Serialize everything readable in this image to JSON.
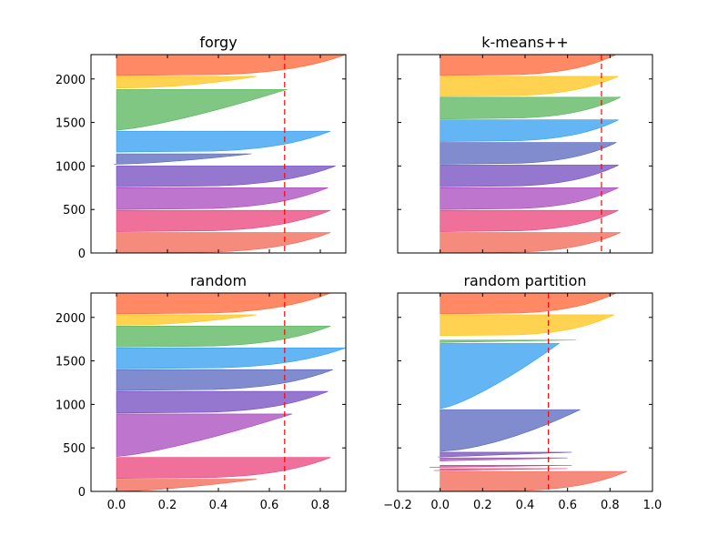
{
  "chart_data": [
    {
      "type": "area",
      "subtype": "silhouette",
      "title": "forgy",
      "xlim": [
        -0.1,
        0.9
      ],
      "ylim": [
        0,
        2280
      ],
      "xticks": [],
      "yticks": [
        0,
        500,
        1000,
        1500,
        2000
      ],
      "average_silhouette": 0.66,
      "clusters": [
        {
          "y0": 0,
          "y1": 235,
          "max": 0.84,
          "min": 0.0,
          "shape": 4,
          "color": "#f05a46"
        },
        {
          "y0": 245,
          "y1": 490,
          "max": 0.84,
          "min": 0.0,
          "shape": 4,
          "color": "#e8336f"
        },
        {
          "y0": 500,
          "y1": 750,
          "max": 0.83,
          "min": 0.0,
          "shape": 4,
          "color": "#a33bb8"
        },
        {
          "y0": 760,
          "y1": 1000,
          "max": 0.86,
          "min": 0.0,
          "shape": 4,
          "color": "#6a3dbb"
        },
        {
          "y0": 1020,
          "y1": 1140,
          "max": 0.53,
          "min": -0.01,
          "shape": 1.5,
          "color": "#4a5bb8"
        },
        {
          "y0": 1160,
          "y1": 1400,
          "max": 0.84,
          "min": 0.0,
          "shape": 4,
          "color": "#2196f0"
        },
        {
          "y0": 1410,
          "y1": 1880,
          "max": 0.67,
          "min": 0.0,
          "shape": 1.3,
          "color": "#4caf50"
        },
        {
          "y0": 1895,
          "y1": 2030,
          "max": 0.55,
          "min": 0.0,
          "shape": 2,
          "color": "#ffc107"
        },
        {
          "y0": 2040,
          "y1": 2280,
          "max": 0.9,
          "min": 0.0,
          "shape": 4,
          "color": "#ff5722"
        }
      ]
    },
    {
      "type": "area",
      "subtype": "silhouette",
      "title": "k-means++",
      "xlim": [
        -0.2,
        1.0
      ],
      "ylim": [
        0,
        2280
      ],
      "xticks": [],
      "yticks": [],
      "average_silhouette": 0.76,
      "clusters": [
        {
          "y0": 0,
          "y1": 235,
          "max": 0.85,
          "min": 0.0,
          "shape": 4,
          "color": "#f05a46"
        },
        {
          "y0": 245,
          "y1": 490,
          "max": 0.84,
          "min": 0.0,
          "shape": 4,
          "color": "#e8336f"
        },
        {
          "y0": 500,
          "y1": 750,
          "max": 0.84,
          "min": 0.0,
          "shape": 4,
          "color": "#a33bb8"
        },
        {
          "y0": 760,
          "y1": 1010,
          "max": 0.84,
          "min": 0.0,
          "shape": 4,
          "color": "#6a3dbb"
        },
        {
          "y0": 1020,
          "y1": 1270,
          "max": 0.83,
          "min": 0.0,
          "shape": 4,
          "color": "#4a5bb8"
        },
        {
          "y0": 1280,
          "y1": 1530,
          "max": 0.84,
          "min": 0.0,
          "shape": 4,
          "color": "#2196f0"
        },
        {
          "y0": 1540,
          "y1": 1790,
          "max": 0.85,
          "min": 0.0,
          "shape": 4,
          "color": "#4caf50"
        },
        {
          "y0": 1800,
          "y1": 2030,
          "max": 0.84,
          "min": 0.0,
          "shape": 4,
          "color": "#ffc107"
        },
        {
          "y0": 2040,
          "y1": 2280,
          "max": 0.83,
          "min": 0.0,
          "shape": 4,
          "color": "#ff5722"
        }
      ]
    },
    {
      "type": "area",
      "subtype": "silhouette",
      "title": "random",
      "xlim": [
        -0.1,
        0.9
      ],
      "ylim": [
        0,
        2280
      ],
      "xticks": [
        0.0,
        0.2,
        0.4,
        0.6,
        0.8
      ],
      "xtick_labels": [
        "0.0",
        "0.2",
        "0.4",
        "0.6",
        "0.8"
      ],
      "yticks": [
        0,
        500,
        1000,
        1500,
        2000
      ],
      "average_silhouette": 0.66,
      "clusters": [
        {
          "y0": 0,
          "y1": 140,
          "max": 0.55,
          "min": 0.0,
          "shape": 1.5,
          "color": "#f05a46"
        },
        {
          "y0": 150,
          "y1": 390,
          "max": 0.84,
          "min": 0.0,
          "shape": 4,
          "color": "#e8336f"
        },
        {
          "y0": 400,
          "y1": 890,
          "max": 0.69,
          "min": 0.0,
          "shape": 1.3,
          "color": "#a33bb8"
        },
        {
          "y0": 900,
          "y1": 1150,
          "max": 0.83,
          "min": 0.0,
          "shape": 4,
          "color": "#6a3dbb"
        },
        {
          "y0": 1160,
          "y1": 1400,
          "max": 0.85,
          "min": 0.0,
          "shape": 4,
          "color": "#4a5bb8"
        },
        {
          "y0": 1410,
          "y1": 1650,
          "max": 0.9,
          "min": 0.0,
          "shape": 4,
          "color": "#2196f0"
        },
        {
          "y0": 1660,
          "y1": 1900,
          "max": 0.84,
          "min": 0.0,
          "shape": 4,
          "color": "#4caf50"
        },
        {
          "y0": 1910,
          "y1": 2030,
          "max": 0.55,
          "min": 0.0,
          "shape": 2,
          "color": "#ffc107"
        },
        {
          "y0": 2040,
          "y1": 2280,
          "max": 0.84,
          "min": 0.0,
          "shape": 4,
          "color": "#ff5722"
        }
      ]
    },
    {
      "type": "area",
      "subtype": "silhouette",
      "title": "random partition",
      "xlim": [
        -0.2,
        1.0
      ],
      "ylim": [
        0,
        2280
      ],
      "xticks": [
        -0.2,
        0.0,
        0.2,
        0.4,
        0.6,
        0.8,
        1.0
      ],
      "xtick_labels": [
        "−0.2",
        "0.0",
        "0.2",
        "0.4",
        "0.6",
        "0.8",
        "1.0"
      ],
      "yticks": [],
      "average_silhouette": 0.51,
      "clusters": [
        {
          "y0": 0,
          "y1": 230,
          "max": 0.88,
          "min": 0.0,
          "shape": 4,
          "color": "#f05a46"
        },
        {
          "y0": 240,
          "y1": 262,
          "max": 0.6,
          "min": -0.03,
          "shape": 1,
          "color": "#e8336f"
        },
        {
          "y0": 275,
          "y1": 300,
          "max": 0.62,
          "min": -0.05,
          "shape": 1,
          "color": "#d12f85"
        },
        {
          "y0": 350,
          "y1": 385,
          "max": 0.6,
          "min": 0.0,
          "shape": 1,
          "color": "#a33bb8"
        },
        {
          "y0": 395,
          "y1": 450,
          "max": 0.62,
          "min": -0.01,
          "shape": 1,
          "color": "#6a3dbb"
        },
        {
          "y0": 460,
          "y1": 940,
          "max": 0.66,
          "min": 0.0,
          "shape": 1.6,
          "color": "#4a5bb8"
        },
        {
          "y0": 950,
          "y1": 1700,
          "max": 0.56,
          "min": 0.0,
          "shape": 1.3,
          "color": "#2196f0"
        },
        {
          "y0": 1712,
          "y1": 1740,
          "max": 0.64,
          "min": 0.0,
          "shape": 1,
          "color": "#4caf50"
        },
        {
          "y0": 1790,
          "y1": 2030,
          "max": 0.82,
          "min": 0.0,
          "shape": 4,
          "color": "#ffc107"
        },
        {
          "y0": 2040,
          "y1": 2280,
          "max": 0.83,
          "min": 0.0,
          "shape": 4,
          "color": "#ff5722"
        }
      ]
    }
  ]
}
